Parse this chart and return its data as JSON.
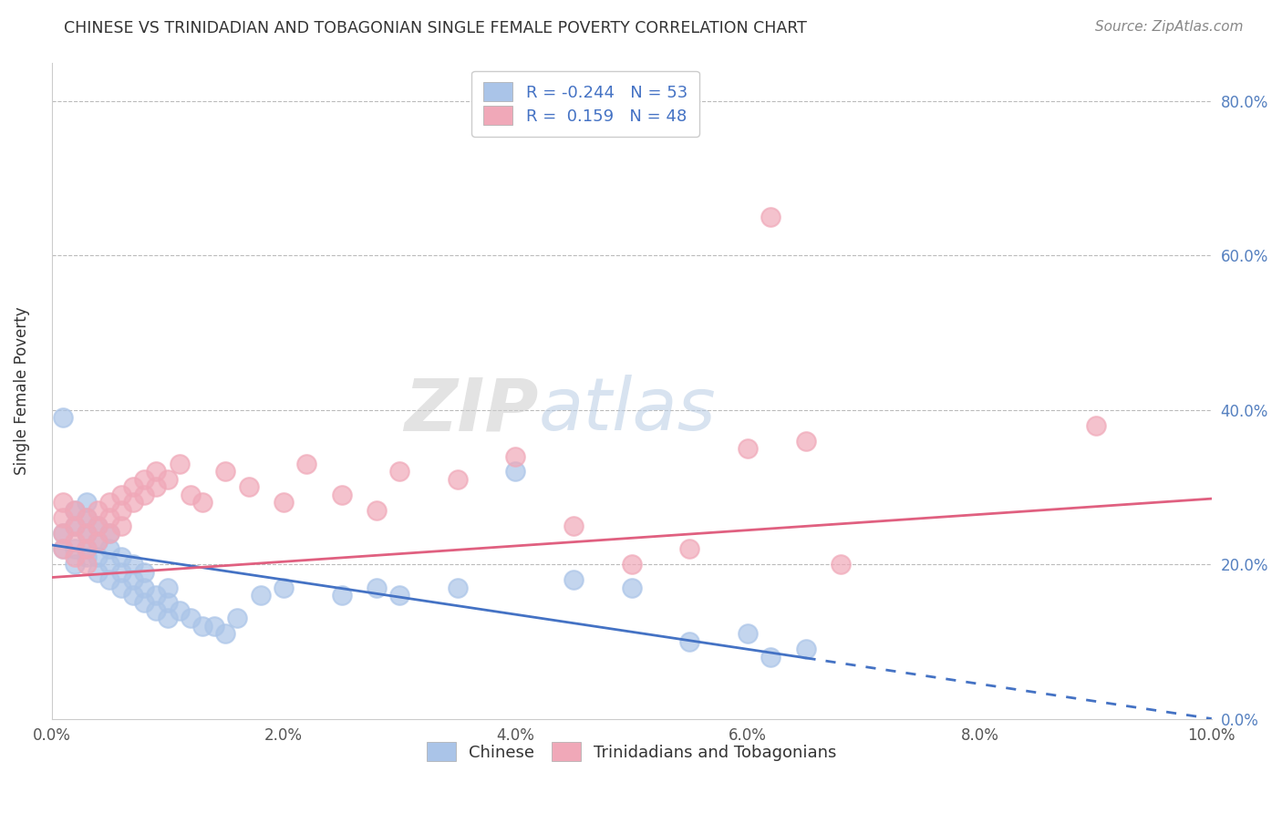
{
  "title": "CHINESE VS TRINIDADIAN AND TOBAGONIAN SINGLE FEMALE POVERTY CORRELATION CHART",
  "source": "Source: ZipAtlas.com",
  "ylabel": "Single Female Poverty",
  "xlabel": "",
  "xlim": [
    0.0,
    0.1
  ],
  "ylim": [
    0.0,
    0.85
  ],
  "xticks": [
    0.0,
    0.02,
    0.04,
    0.06,
    0.08,
    0.1
  ],
  "xtick_labels": [
    "0.0%",
    "2.0%",
    "4.0%",
    "6.0%",
    "8.0%",
    "10.0%"
  ],
  "yticks": [
    0.0,
    0.2,
    0.4,
    0.6,
    0.8
  ],
  "ytick_labels": [
    "0.0%",
    "20.0%",
    "40.0%",
    "60.0%",
    "80.0%"
  ],
  "legend_R1": "-0.244",
  "legend_N1": "53",
  "legend_R2": "0.159",
  "legend_N2": "48",
  "color_blue": "#aac4e8",
  "color_pink": "#f0a8b8",
  "line_blue": "#4472c4",
  "line_pink": "#e06080",
  "watermark_zip": "ZIP",
  "watermark_atlas": "atlas",
  "blue_line_y0": 0.225,
  "blue_line_y1": 0.0,
  "pink_line_y0": 0.183,
  "pink_line_y1": 0.285,
  "chinese_x": [
    0.001,
    0.001,
    0.001,
    0.002,
    0.002,
    0.002,
    0.002,
    0.003,
    0.003,
    0.003,
    0.003,
    0.003,
    0.004,
    0.004,
    0.004,
    0.004,
    0.005,
    0.005,
    0.005,
    0.005,
    0.006,
    0.006,
    0.006,
    0.007,
    0.007,
    0.007,
    0.008,
    0.008,
    0.008,
    0.009,
    0.009,
    0.01,
    0.01,
    0.01,
    0.011,
    0.012,
    0.013,
    0.014,
    0.015,
    0.016,
    0.018,
    0.02,
    0.025,
    0.028,
    0.03,
    0.035,
    0.04,
    0.045,
    0.05,
    0.055,
    0.06,
    0.062,
    0.065
  ],
  "chinese_y": [
    0.39,
    0.22,
    0.24,
    0.25,
    0.27,
    0.2,
    0.22,
    0.21,
    0.22,
    0.24,
    0.26,
    0.28,
    0.19,
    0.21,
    0.23,
    0.25,
    0.18,
    0.2,
    0.22,
    0.24,
    0.17,
    0.19,
    0.21,
    0.16,
    0.18,
    0.2,
    0.15,
    0.17,
    0.19,
    0.14,
    0.16,
    0.13,
    0.15,
    0.17,
    0.14,
    0.13,
    0.12,
    0.12,
    0.11,
    0.13,
    0.16,
    0.17,
    0.16,
    0.17,
    0.16,
    0.17,
    0.32,
    0.18,
    0.17,
    0.1,
    0.11,
    0.08,
    0.09
  ],
  "tnt_x": [
    0.001,
    0.001,
    0.001,
    0.001,
    0.002,
    0.002,
    0.002,
    0.002,
    0.003,
    0.003,
    0.003,
    0.003,
    0.004,
    0.004,
    0.004,
    0.005,
    0.005,
    0.005,
    0.006,
    0.006,
    0.006,
    0.007,
    0.007,
    0.008,
    0.008,
    0.009,
    0.009,
    0.01,
    0.011,
    0.012,
    0.013,
    0.015,
    0.017,
    0.02,
    0.022,
    0.025,
    0.028,
    0.03,
    0.035,
    0.04,
    0.045,
    0.05,
    0.055,
    0.06,
    0.062,
    0.065,
    0.068,
    0.09
  ],
  "tnt_y": [
    0.26,
    0.28,
    0.22,
    0.24,
    0.25,
    0.27,
    0.21,
    0.23,
    0.24,
    0.26,
    0.2,
    0.22,
    0.25,
    0.27,
    0.23,
    0.24,
    0.26,
    0.28,
    0.27,
    0.29,
    0.25,
    0.3,
    0.28,
    0.29,
    0.31,
    0.3,
    0.32,
    0.31,
    0.33,
    0.29,
    0.28,
    0.32,
    0.3,
    0.28,
    0.33,
    0.29,
    0.27,
    0.32,
    0.31,
    0.34,
    0.25,
    0.2,
    0.22,
    0.35,
    0.65,
    0.36,
    0.2,
    0.38
  ]
}
